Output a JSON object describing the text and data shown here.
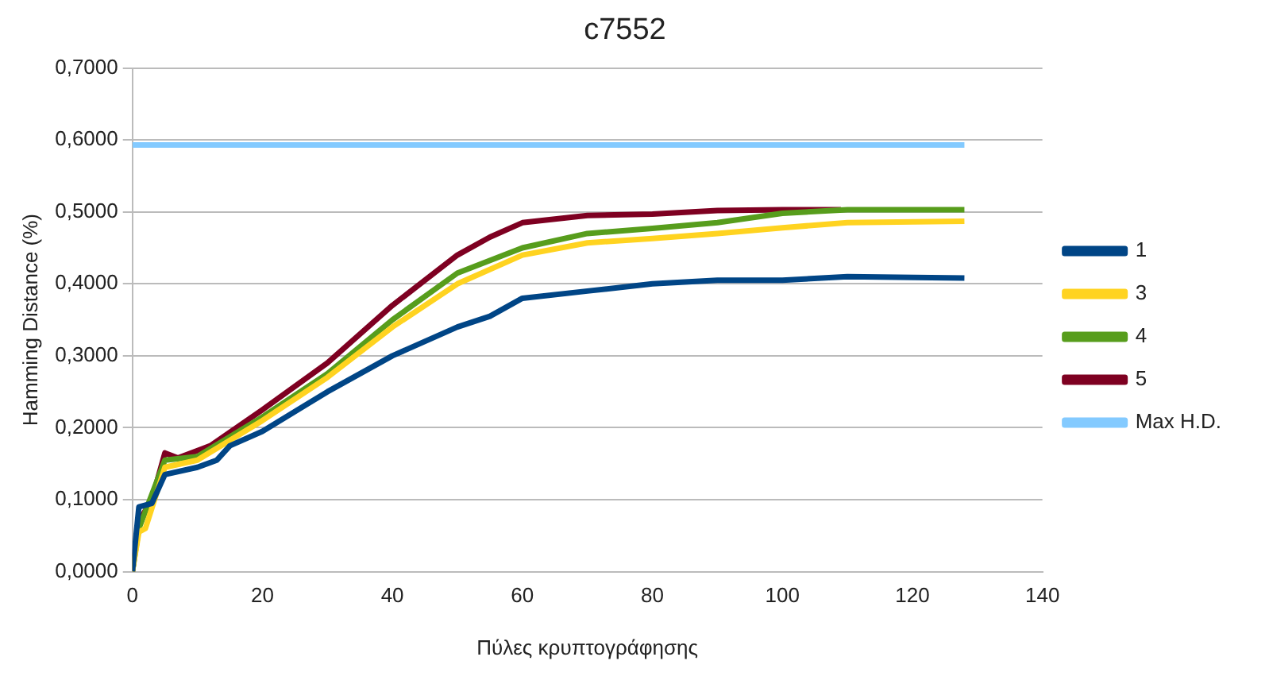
{
  "chart_data": {
    "type": "line",
    "title": "c7552",
    "xlabel": "Πύλες κρυπτογράφησης",
    "ylabel": "Hamming Distance (%)",
    "xlim": [
      0,
      140
    ],
    "xticks": [
      0,
      20,
      40,
      60,
      80,
      100,
      120,
      140
    ],
    "ylim": [
      0,
      0.7
    ],
    "yticks": [
      {
        "value": 0,
        "label": "0,0000"
      },
      {
        "value": 0.1,
        "label": "0,1000"
      },
      {
        "value": 0.2,
        "label": "0,2000"
      },
      {
        "value": 0.3,
        "label": "0,3000"
      },
      {
        "value": 0.4,
        "label": "0,4000"
      },
      {
        "value": 0.5,
        "label": "0,5000"
      },
      {
        "value": 0.6,
        "label": "0,6000"
      },
      {
        "value": 0.7,
        "label": "0,7000"
      }
    ],
    "grid": "y",
    "legend": "right",
    "marker": "none",
    "line_style": "solid",
    "series": [
      {
        "name": "1",
        "color": "#004586",
        "x": [
          0,
          1,
          3,
          5,
          10,
          13,
          15,
          20,
          30,
          40,
          50,
          55,
          60,
          70,
          80,
          90,
          100,
          110,
          128
        ],
        "values": [
          0,
          0.09,
          0.095,
          0.135,
          0.145,
          0.155,
          0.175,
          0.195,
          0.25,
          0.3,
          0.34,
          0.355,
          0.38,
          0.39,
          0.4,
          0.405,
          0.405,
          0.41,
          0.408
        ]
      },
      {
        "name": "3",
        "color": "#ffd320",
        "x": [
          0,
          1,
          2,
          5,
          10,
          20,
          30,
          40,
          50,
          60,
          70,
          80,
          90,
          100,
          110,
          128
        ],
        "values": [
          0,
          0.055,
          0.06,
          0.145,
          0.155,
          0.21,
          0.27,
          0.34,
          0.4,
          0.44,
          0.457,
          0.463,
          0.47,
          0.478,
          0.485,
          0.487
        ]
      },
      {
        "name": "4",
        "color": "#579d1c",
        "x": [
          0,
          1,
          5,
          10,
          20,
          30,
          40,
          50,
          60,
          70,
          80,
          90,
          100,
          110,
          128
        ],
        "values": [
          0,
          0.06,
          0.155,
          0.16,
          0.215,
          0.275,
          0.35,
          0.415,
          0.45,
          0.47,
          0.477,
          0.485,
          0.498,
          0.503,
          0.503
        ]
      },
      {
        "name": "5",
        "color": "#7e0021",
        "x": [
          0,
          1,
          3,
          5,
          7,
          12,
          20,
          30,
          40,
          50,
          55,
          60,
          70,
          80,
          90,
          100,
          109
        ],
        "values": [
          0,
          0.07,
          0.1,
          0.165,
          0.158,
          0.175,
          0.225,
          0.29,
          0.37,
          0.44,
          0.465,
          0.485,
          0.495,
          0.497,
          0.502,
          0.503,
          0.503
        ]
      },
      {
        "name": "Max H.D.",
        "color": "#83caff",
        "x": [
          0,
          128
        ],
        "values": [
          0.593,
          0.593
        ]
      }
    ]
  }
}
